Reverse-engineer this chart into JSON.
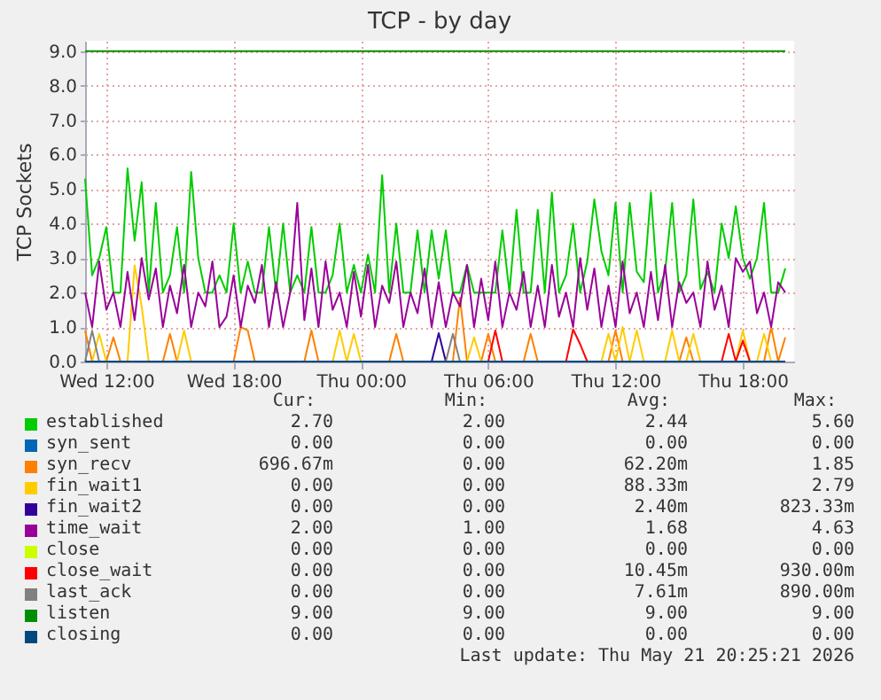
{
  "chart_data": {
    "type": "line",
    "title": "TCP - by day",
    "ylabel": "TCP Sockets",
    "grid": true,
    "legend": "bottom",
    "xlim": [
      "2026-05-20T11:00",
      "2026-05-21T20:25"
    ],
    "xticks": [
      {
        "value": "2026-05-20T12:00",
        "label": "Wed 12:00"
      },
      {
        "value": "2026-05-20T18:00",
        "label": "Wed 18:00"
      },
      {
        "value": "2026-05-21T00:00",
        "label": "Thu 00:00"
      },
      {
        "value": "2026-05-21T06:00",
        "label": "Thu 06:00"
      },
      {
        "value": "2026-05-21T12:00",
        "label": "Thu 12:00"
      },
      {
        "value": "2026-05-21T18:00",
        "label": "Thu 18:00"
      }
    ],
    "ylim": [
      0,
      9.3
    ],
    "yticks": [
      {
        "value": 0,
        "label": "0.0"
      },
      {
        "value": 1,
        "label": "1.0"
      },
      {
        "value": 2,
        "label": "2.0"
      },
      {
        "value": 3,
        "label": "3.0"
      },
      {
        "value": 4,
        "label": "4.0"
      },
      {
        "value": 5,
        "label": "5.0"
      },
      {
        "value": 6,
        "label": "6.0"
      },
      {
        "value": 7,
        "label": "7.0"
      },
      {
        "value": 8,
        "label": "8.0"
      },
      {
        "value": 9,
        "label": "9.0"
      }
    ],
    "x": [
      "2026-05-20T11:00",
      "2026-05-20T11:20",
      "2026-05-20T11:40",
      "2026-05-20T12:00",
      "2026-05-20T12:20",
      "2026-05-20T12:40",
      "2026-05-20T13:00",
      "2026-05-20T13:20",
      "2026-05-20T13:40",
      "2026-05-20T14:00",
      "2026-05-20T14:20",
      "2026-05-20T14:40",
      "2026-05-20T15:00",
      "2026-05-20T15:20",
      "2026-05-20T15:40",
      "2026-05-20T16:00",
      "2026-05-20T16:20",
      "2026-05-20T16:40",
      "2026-05-20T17:00",
      "2026-05-20T17:20",
      "2026-05-20T17:40",
      "2026-05-20T18:00",
      "2026-05-20T18:20",
      "2026-05-20T18:40",
      "2026-05-20T19:00",
      "2026-05-20T19:20",
      "2026-05-20T19:40",
      "2026-05-20T20:00",
      "2026-05-20T20:20",
      "2026-05-20T20:40",
      "2026-05-20T21:00",
      "2026-05-20T21:20",
      "2026-05-20T21:40",
      "2026-05-20T22:00",
      "2026-05-20T22:20",
      "2026-05-20T22:40",
      "2026-05-20T23:00",
      "2026-05-20T23:20",
      "2026-05-20T23:40",
      "2026-05-21T00:00",
      "2026-05-21T00:20",
      "2026-05-21T00:40",
      "2026-05-21T01:00",
      "2026-05-21T01:20",
      "2026-05-21T01:40",
      "2026-05-21T02:00",
      "2026-05-21T02:20",
      "2026-05-21T02:40",
      "2026-05-21T03:00",
      "2026-05-21T03:20",
      "2026-05-21T03:40",
      "2026-05-21T04:00",
      "2026-05-21T04:20",
      "2026-05-21T04:40",
      "2026-05-21T05:00",
      "2026-05-21T05:20",
      "2026-05-21T05:40",
      "2026-05-21T06:00",
      "2026-05-21T06:20",
      "2026-05-21T06:40",
      "2026-05-21T07:00",
      "2026-05-21T07:20",
      "2026-05-21T07:40",
      "2026-05-21T08:00",
      "2026-05-21T08:20",
      "2026-05-21T08:40",
      "2026-05-21T09:00",
      "2026-05-21T09:20",
      "2026-05-21T09:40",
      "2026-05-21T10:00",
      "2026-05-21T10:20",
      "2026-05-21T10:40",
      "2026-05-21T11:00",
      "2026-05-21T11:20",
      "2026-05-21T11:40",
      "2026-05-21T12:00",
      "2026-05-21T12:20",
      "2026-05-21T12:40",
      "2026-05-21T13:00",
      "2026-05-21T13:20",
      "2026-05-21T13:40",
      "2026-05-21T14:00",
      "2026-05-21T14:20",
      "2026-05-21T14:40",
      "2026-05-21T15:00",
      "2026-05-21T15:20",
      "2026-05-21T15:40",
      "2026-05-21T16:00",
      "2026-05-21T16:20",
      "2026-05-21T16:40",
      "2026-05-21T17:00",
      "2026-05-21T17:20",
      "2026-05-21T17:40",
      "2026-05-21T18:00",
      "2026-05-21T18:20",
      "2026-05-21T18:40",
      "2026-05-21T19:00",
      "2026-05-21T19:20",
      "2026-05-21T19:40",
      "2026-05-21T20:00"
    ],
    "series": [
      {
        "name": "established",
        "color": "#00cc00",
        "values": [
          5.3,
          2.5,
          3.0,
          3.9,
          2.0,
          2.0,
          5.6,
          3.5,
          5.2,
          2.0,
          4.6,
          2.0,
          2.5,
          3.9,
          2.0,
          5.5,
          3.0,
          2.0,
          2.0,
          2.5,
          2.0,
          4.0,
          2.0,
          2.9,
          2.0,
          2.0,
          3.9,
          2.0,
          4.0,
          2.0,
          2.5,
          2.0,
          3.9,
          2.0,
          2.0,
          2.5,
          4.0,
          2.0,
          2.8,
          2.0,
          3.1,
          2.0,
          5.4,
          2.0,
          4.0,
          2.0,
          2.0,
          3.8,
          2.0,
          3.8,
          2.4,
          3.8,
          2.0,
          2.0,
          2.8,
          2.0,
          2.0,
          2.0,
          2.0,
          3.8,
          2.0,
          4.4,
          2.0,
          2.0,
          4.4,
          2.0,
          4.9,
          2.0,
          2.5,
          4.0,
          2.0,
          2.9,
          4.7,
          3.2,
          2.5,
          4.6,
          2.0,
          4.6,
          2.6,
          2.3,
          4.9,
          2.0,
          2.6,
          4.6,
          2.0,
          2.5,
          4.7,
          2.1,
          2.6,
          2.0,
          4.0,
          3.0,
          4.5,
          3.0,
          2.4,
          3.0,
          4.6,
          2.0,
          2.0,
          2.7
        ]
      },
      {
        "name": "syn_sent",
        "color": "#0066b3",
        "values": [
          null,
          null,
          null,
          null,
          null,
          null,
          null,
          null,
          null,
          null,
          null,
          null,
          null,
          null,
          null,
          null,
          null,
          null,
          null,
          null,
          null,
          null,
          null,
          null,
          null,
          null,
          null,
          null,
          null,
          null,
          null,
          null,
          null,
          null,
          null,
          null,
          null,
          null,
          null,
          null,
          null,
          null,
          null,
          null,
          null,
          null,
          null,
          null,
          null,
          null,
          null,
          null,
          null,
          null,
          null,
          null,
          null,
          null,
          null,
          null,
          null,
          null,
          null,
          null,
          null,
          null,
          null,
          null,
          null,
          null,
          null,
          null,
          null,
          null,
          null,
          null,
          null,
          null,
          null,
          null,
          null,
          null,
          null,
          null,
          null,
          null,
          null,
          null,
          null,
          null,
          null,
          null,
          null,
          null,
          null,
          null,
          null,
          null,
          null,
          null
        ]
      },
      {
        "name": "syn_recv",
        "color": "#ff8000",
        "values": [
          0.9,
          0,
          null,
          0,
          0.7,
          0,
          null,
          null,
          null,
          null,
          null,
          0,
          0.8,
          0,
          null,
          null,
          null,
          null,
          null,
          null,
          null,
          0,
          1.0,
          0.9,
          0,
          null,
          null,
          null,
          null,
          null,
          null,
          0,
          0.9,
          0,
          null,
          null,
          null,
          null,
          null,
          null,
          null,
          null,
          null,
          0,
          0.8,
          0,
          null,
          null,
          null,
          null,
          null,
          null,
          0,
          1.85,
          0,
          null,
          0,
          0.8,
          0,
          null,
          null,
          null,
          0,
          0.8,
          0,
          null,
          null,
          null,
          null,
          null,
          null,
          null,
          null,
          null,
          0,
          0.9,
          0,
          null,
          null,
          null,
          null,
          null,
          null,
          null,
          0,
          0.7,
          0,
          null,
          null,
          null,
          null,
          null,
          null,
          null,
          null,
          null,
          0,
          1.0,
          0,
          0.7
        ]
      },
      {
        "name": "fin_wait1",
        "color": "#ffcc00",
        "values": [
          null,
          0,
          0.8,
          0,
          null,
          null,
          0,
          2.79,
          1.6,
          0,
          null,
          null,
          null,
          0,
          0.9,
          0,
          null,
          null,
          null,
          null,
          null,
          null,
          null,
          null,
          null,
          null,
          null,
          null,
          null,
          null,
          null,
          null,
          null,
          null,
          null,
          0,
          0.9,
          0,
          0.8,
          0,
          null,
          null,
          null,
          null,
          null,
          null,
          null,
          null,
          null,
          null,
          null,
          null,
          null,
          null,
          0,
          0.7,
          0,
          null,
          null,
          null,
          null,
          null,
          null,
          null,
          null,
          null,
          null,
          null,
          null,
          null,
          null,
          null,
          null,
          0,
          0.8,
          0,
          1.0,
          0,
          0.9,
          0,
          null,
          null,
          0,
          0.9,
          0,
          0,
          0.8,
          0,
          null,
          null,
          null,
          null,
          0,
          0.9,
          0,
          0,
          0.8,
          0,
          null,
          null
        ]
      },
      {
        "name": "fin_wait2",
        "color": "#330099",
        "values": [
          null,
          null,
          null,
          null,
          null,
          null,
          null,
          null,
          null,
          null,
          null,
          null,
          null,
          null,
          null,
          null,
          null,
          null,
          null,
          null,
          null,
          null,
          null,
          null,
          null,
          null,
          null,
          null,
          null,
          null,
          null,
          null,
          null,
          null,
          null,
          null,
          null,
          null,
          null,
          null,
          null,
          null,
          null,
          null,
          null,
          null,
          null,
          null,
          null,
          0,
          0.82,
          0,
          null,
          null,
          null,
          null,
          null,
          null,
          null,
          null,
          null,
          null,
          null,
          null,
          null,
          null,
          null,
          null,
          null,
          null,
          null,
          null,
          null,
          null,
          null,
          null,
          null,
          null,
          null,
          null,
          null,
          null,
          null,
          null,
          null,
          null,
          null,
          null,
          null,
          null,
          null,
          null,
          null,
          null,
          null,
          null,
          null,
          null,
          null,
          null
        ]
      },
      {
        "name": "time_wait",
        "color": "#990099",
        "values": [
          2.0,
          1.0,
          2.9,
          1.5,
          2.0,
          1.0,
          2.6,
          1.2,
          3.0,
          1.8,
          2.7,
          1.0,
          2.2,
          1.4,
          2.8,
          1.0,
          2.0,
          1.6,
          2.9,
          1.0,
          1.3,
          2.5,
          1.0,
          2.2,
          1.7,
          2.8,
          1.0,
          2.3,
          1.0,
          2.0,
          4.6,
          1.2,
          2.7,
          1.0,
          2.9,
          1.5,
          2.0,
          1.0,
          2.6,
          1.3,
          2.8,
          1.0,
          2.2,
          1.7,
          2.9,
          1.0,
          2.0,
          1.4,
          2.7,
          1.0,
          2.3,
          1.0,
          2.0,
          1.6,
          2.8,
          1.0,
          2.4,
          1.2,
          2.9,
          1.0,
          2.0,
          1.5,
          2.6,
          1.0,
          2.2,
          1.0,
          2.8,
          1.3,
          2.0,
          1.0,
          3.0,
          1.5,
          2.7,
          1.0,
          2.2,
          1.0,
          2.9,
          1.4,
          2.0,
          1.0,
          2.6,
          1.2,
          2.8,
          1.0,
          2.3,
          1.7,
          2.0,
          1.0,
          2.9,
          1.5,
          2.2,
          1.0,
          3.0,
          2.6,
          2.9,
          1.4,
          2.0,
          1.0,
          2.3,
          2.0
        ]
      },
      {
        "name": "close",
        "color": "#ccff00",
        "values": [
          null,
          null,
          null,
          null,
          null,
          null,
          null,
          null,
          null,
          null,
          null,
          null,
          null,
          null,
          null,
          null,
          null,
          null,
          null,
          null,
          null,
          null,
          null,
          null,
          null,
          null,
          null,
          null,
          null,
          null,
          null,
          null,
          null,
          null,
          null,
          null,
          null,
          null,
          null,
          null,
          null,
          null,
          null,
          null,
          null,
          null,
          null,
          null,
          null,
          null,
          null,
          null,
          null,
          null,
          null,
          null,
          null,
          null,
          null,
          null,
          null,
          null,
          null,
          null,
          null,
          null,
          null,
          null,
          null,
          null,
          null,
          null,
          null,
          null,
          null,
          null,
          null,
          null,
          null,
          null,
          null,
          null,
          null,
          null,
          null,
          null,
          null,
          null,
          null,
          null,
          null,
          null,
          null,
          null,
          null,
          null,
          null,
          null,
          null,
          null
        ]
      },
      {
        "name": "close_wait",
        "color": "#ff0000",
        "values": [
          null,
          null,
          null,
          null,
          null,
          null,
          null,
          null,
          null,
          null,
          null,
          null,
          null,
          null,
          null,
          null,
          null,
          null,
          null,
          null,
          null,
          null,
          null,
          null,
          null,
          null,
          null,
          null,
          null,
          null,
          null,
          null,
          null,
          null,
          null,
          null,
          null,
          null,
          null,
          null,
          null,
          null,
          null,
          null,
          null,
          null,
          null,
          null,
          null,
          null,
          null,
          null,
          null,
          null,
          null,
          null,
          null,
          0,
          0.9,
          0,
          null,
          null,
          null,
          null,
          null,
          null,
          null,
          null,
          0,
          0.93,
          0.5,
          0,
          null,
          null,
          null,
          null,
          null,
          null,
          null,
          null,
          null,
          null,
          null,
          null,
          null,
          null,
          null,
          null,
          null,
          null,
          0,
          0.8,
          0,
          0.6,
          0,
          null,
          null,
          null,
          null,
          null
        ]
      },
      {
        "name": "last_ack",
        "color": "#808080",
        "values": [
          0,
          0.89,
          0,
          null,
          null,
          null,
          null,
          null,
          null,
          null,
          null,
          null,
          null,
          null,
          null,
          null,
          null,
          null,
          null,
          null,
          null,
          null,
          null,
          null,
          null,
          null,
          null,
          null,
          null,
          null,
          null,
          null,
          null,
          null,
          null,
          null,
          null,
          null,
          null,
          null,
          null,
          null,
          null,
          null,
          null,
          null,
          null,
          null,
          null,
          null,
          null,
          0,
          0.8,
          0,
          null,
          null,
          null,
          null,
          null,
          null,
          null,
          null,
          null,
          null,
          null,
          null,
          null,
          null,
          null,
          null,
          null,
          null,
          null,
          null,
          null,
          null,
          null,
          null,
          null,
          null,
          null,
          null,
          null,
          null,
          null,
          null,
          null,
          null,
          null,
          null,
          null,
          null,
          null,
          null,
          null,
          null,
          null,
          null,
          null,
          null
        ]
      },
      {
        "name": "listen",
        "color": "#008f00",
        "values": [
          9,
          9,
          9,
          9,
          9,
          9,
          9,
          9,
          9,
          9,
          9,
          9,
          9,
          9,
          9,
          9,
          9,
          9,
          9,
          9,
          9,
          9,
          9,
          9,
          9,
          9,
          9,
          9,
          9,
          9,
          9,
          9,
          9,
          9,
          9,
          9,
          9,
          9,
          9,
          9,
          9,
          9,
          9,
          9,
          9,
          9,
          9,
          9,
          9,
          9,
          9,
          9,
          9,
          9,
          9,
          9,
          9,
          9,
          9,
          9,
          9,
          9,
          9,
          9,
          9,
          9,
          9,
          9,
          9,
          9,
          9,
          9,
          9,
          9,
          9,
          9,
          9,
          9,
          9,
          9,
          9,
          9,
          9,
          9,
          9,
          9,
          9,
          9,
          9,
          9,
          9,
          9,
          9,
          9,
          9,
          9,
          9,
          9,
          9,
          9
        ]
      },
      {
        "name": "closing",
        "color": "#00487d",
        "values": [
          0,
          0,
          0,
          0,
          0,
          0,
          0,
          0,
          0,
          0,
          0,
          0,
          0,
          0,
          0,
          0,
          0,
          0,
          0,
          0,
          0,
          0,
          0,
          0,
          0,
          0,
          0,
          0,
          0,
          0,
          0,
          0,
          0,
          0,
          0,
          0,
          0,
          0,
          0,
          0,
          0,
          0,
          0,
          0,
          0,
          0,
          0,
          0,
          0,
          0,
          0,
          0,
          0,
          0,
          0,
          0,
          0,
          0,
          0,
          0,
          0,
          0,
          0,
          0,
          0,
          0,
          0,
          0,
          0,
          0,
          0,
          0,
          0,
          0,
          0,
          0,
          0,
          0,
          0,
          0,
          0,
          0,
          0,
          0,
          0,
          0,
          0,
          0,
          0,
          0,
          0,
          0,
          0,
          0,
          0,
          0,
          0,
          0,
          0,
          0
        ]
      }
    ],
    "annotations": [
      "Cur:",
      "Min:",
      "Avg:",
      "Max:",
      "2.70",
      "2.00",
      "2.44",
      "5.60",
      "0.00",
      "0.00",
      "0.00",
      "0.00",
      "696.67m",
      "0.00",
      "62.20m",
      "1.85",
      "0.00",
      "0.00",
      "88.33m",
      "2.79",
      "0.00",
      "0.00",
      "2.40m",
      "823.33m",
      "2.00",
      "1.00",
      "1.68",
      "4.63",
      "0.00",
      "0.00",
      "0.00",
      "0.00",
      "0.00",
      "0.00",
      "10.45m",
      "930.00m",
      "0.00",
      "0.00",
      "7.61m",
      "890.00m",
      "9.00",
      "9.00",
      "9.00",
      "9.00",
      "0.00",
      "0.00",
      "0.00",
      "0.00",
      "Last update: Thu May 21 20:25:21 2026"
    ]
  }
}
